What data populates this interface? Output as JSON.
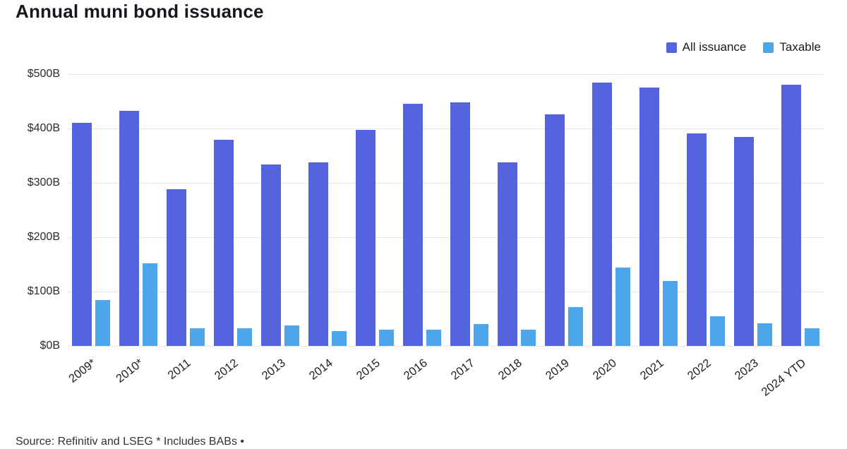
{
  "title": "Annual muni bond issuance",
  "legend": [
    {
      "label": "All issuance",
      "color": "#5464DF"
    },
    {
      "label": "Taxable",
      "color": "#4BA7E9"
    }
  ],
  "source": "Source: Refinitiv and LSEG * Includes BABs •",
  "chart_data": {
    "type": "bar",
    "title": "Annual muni bond issuance",
    "categories": [
      "2009*",
      "2010*",
      "2011",
      "2012",
      "2013",
      "2014",
      "2015",
      "2016",
      "2017",
      "2018",
      "2019",
      "2020",
      "2021",
      "2022",
      "2023",
      "2024 YTD"
    ],
    "series": [
      {
        "name": "All issuance",
        "color": "#5464DF",
        "values": [
          410,
          433,
          288,
          379,
          334,
          338,
          398,
          445,
          448,
          338,
          426,
          484,
          475,
          391,
          384,
          480
        ]
      },
      {
        "name": "Taxable",
        "color": "#4BA7E9",
        "values": [
          85,
          152,
          32,
          33,
          38,
          27,
          30,
          30,
          40,
          30,
          72,
          144,
          119,
          55,
          41,
          33
        ]
      }
    ],
    "xlabel": "",
    "ylabel": "",
    "ylim": [
      0,
      500
    ],
    "yticks": [
      {
        "value": 0,
        "label": "$0B"
      },
      {
        "value": 100,
        "label": "$100B"
      },
      {
        "value": 200,
        "label": "$200B"
      },
      {
        "value": 300,
        "label": "$300B"
      },
      {
        "value": 400,
        "label": "$400B"
      },
      {
        "value": 500,
        "label": "$500B"
      }
    ],
    "grid": true,
    "legend_position": "top-right"
  }
}
